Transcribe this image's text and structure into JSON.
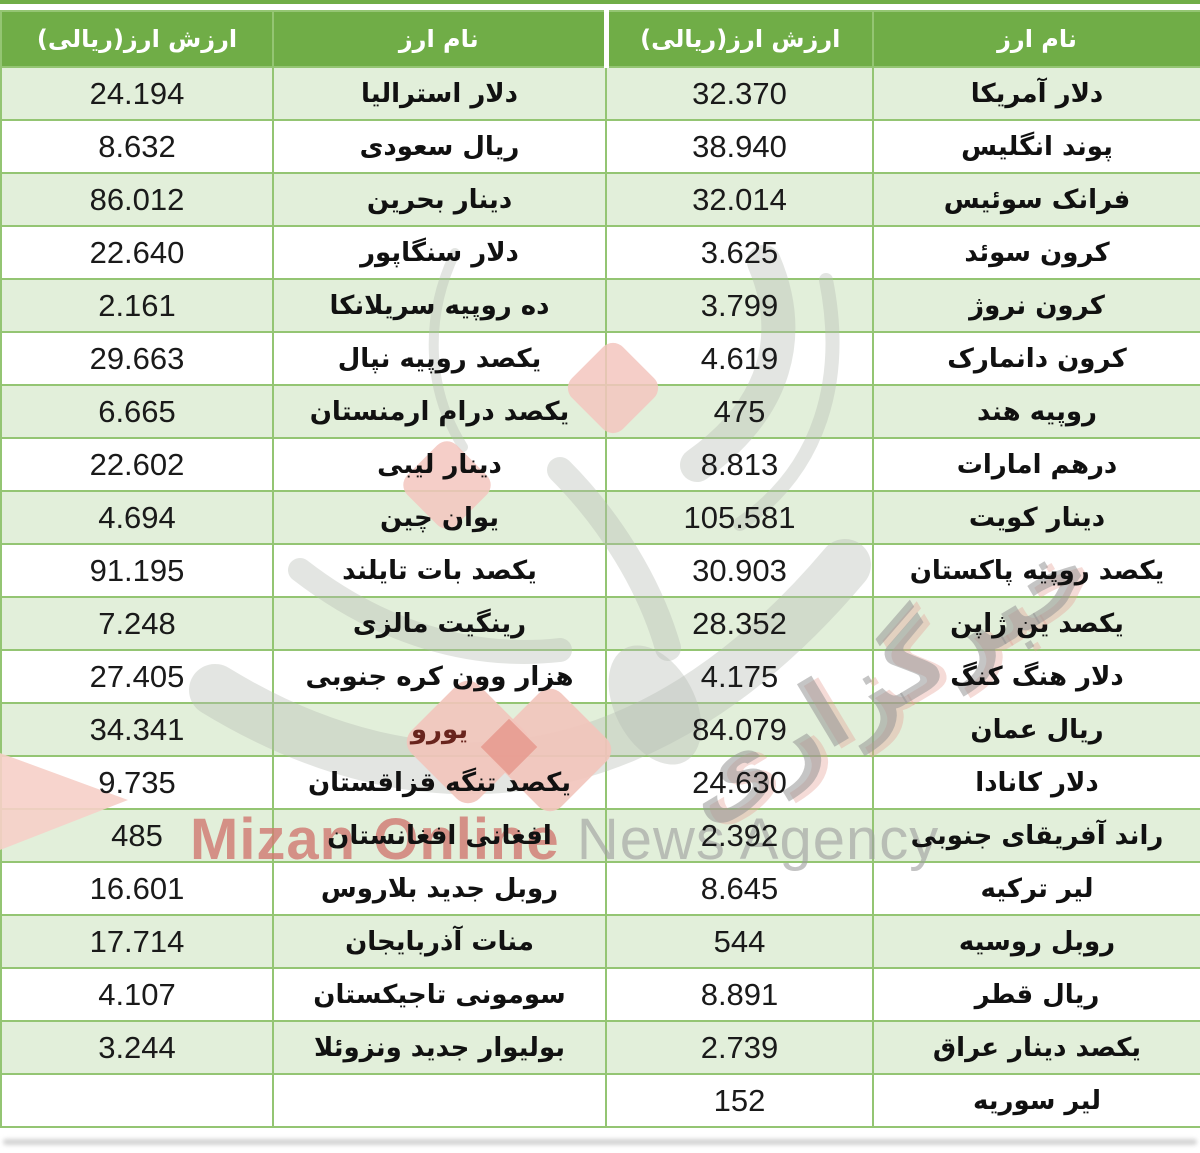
{
  "chart_data": {
    "type": "table",
    "direction": "rtl",
    "columns": [
      "نام ارز",
      "ارزش ارز(ریالی)",
      "نام ارز",
      "ارزش ارز(ریالی)"
    ],
    "rows": [
      [
        "دلار آمریکا",
        "32.370",
        "دلار استرالیا",
        "24.194"
      ],
      [
        "پوند انگلیس",
        "38.940",
        "ریال سعودی",
        "8.632"
      ],
      [
        "فرانک سوئیس",
        "32.014",
        "دینار بحرین",
        "86.012"
      ],
      [
        "کرون سوئد",
        "3.625",
        "دلار سنگاپور",
        "22.640"
      ],
      [
        "کرون نروژ",
        "3.799",
        "ده روپیه سریلانکا",
        "2.161"
      ],
      [
        "کرون دانمارک",
        "4.619",
        "یکصد روپیه نپال",
        "29.663"
      ],
      [
        "روپیه هند",
        "475",
        "یکصد درام ارمنستان",
        "6.665"
      ],
      [
        "درهم امارات",
        "8.813",
        "دینار لیبی",
        "22.602"
      ],
      [
        "دینار کویت",
        "105.581",
        "یوان چین",
        "4.694"
      ],
      [
        "یکصد روپیه پاکستان",
        "30.903",
        "یکصد بات تایلند",
        "91.195"
      ],
      [
        "یکصد ین ژاپن",
        "28.352",
        "رینگیت مالزی",
        "7.248"
      ],
      [
        "دلار هنگ کنگ",
        "4.175",
        "هزار وون کره جنوبی",
        "27.405"
      ],
      [
        "ریال عمان",
        "84.079",
        "یورو",
        "34.341"
      ],
      [
        "دلار کانادا",
        "24.630",
        "یکصد تنگه قزاقستان",
        "9.735"
      ],
      [
        "راند آفریقای جنوبی",
        "2.392",
        "افغانی افغانستان",
        "485"
      ],
      [
        "لیر ترکیه",
        "8.645",
        "روبل جدید بلاروس",
        "16.601"
      ],
      [
        "روبل روسیه",
        "544",
        "منات آذربایجان",
        "17.714"
      ],
      [
        "ریال قطر",
        "8.891",
        "سومونی تاجیکستان",
        "4.107"
      ],
      [
        "یکصد دینار عراق",
        "2.739",
        "بولیوار جدید ونزوئلا",
        "3.244"
      ],
      [
        "لیر سوریه",
        "152",
        "",
        ""
      ]
    ],
    "accent_cell": {
      "row": 12,
      "col": 2,
      "color": "#69241d"
    },
    "banding": "odd rows light green",
    "grid": true
  },
  "watermark": {
    "fa_diagonal": "خبرگزاری",
    "en_primary": "Mizan Online",
    "en_secondary": "News Agency"
  },
  "colors": {
    "header_green": "#70ad47",
    "band_green": "#e2efda",
    "border_green": "#94c573",
    "accent_text": "#69241d",
    "watermark_red": "#d17871",
    "watermark_gray": "#9e9e9e"
  }
}
